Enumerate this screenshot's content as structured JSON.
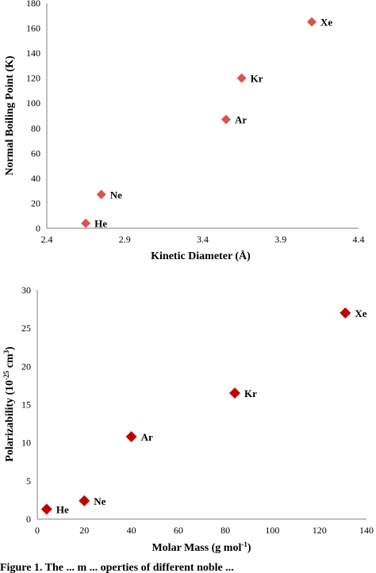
{
  "chart_data": [
    {
      "type": "scatter",
      "xlabel": "Kinetic Diameter (Å)",
      "ylabel": "Normal Boiling Point (K)",
      "xlim": [
        2.4,
        4.4
      ],
      "ylim": [
        0,
        180
      ],
      "xticks": [
        "2.4",
        "2.9",
        "3.4",
        "3.9",
        "4.4"
      ],
      "yticks": [
        "0",
        "20",
        "40",
        "60",
        "80",
        "100",
        "120",
        "140",
        "160",
        "180"
      ],
      "color": "#d9534f",
      "points": [
        {
          "label": "He",
          "x": 2.65,
          "y": 4
        },
        {
          "label": "Ne",
          "x": 2.75,
          "y": 27
        },
        {
          "label": "Ar",
          "x": 3.55,
          "y": 87
        },
        {
          "label": "Kr",
          "x": 3.65,
          "y": 120
        },
        {
          "label": "Xe",
          "x": 4.1,
          "y": 165
        }
      ]
    },
    {
      "type": "scatter",
      "xlabel": "Molar Mass (g mol-1)",
      "ylabel": "Polarizability (10-25 cm3)",
      "xlim": [
        0,
        140
      ],
      "ylim": [
        0,
        30
      ],
      "xticks": [
        "0",
        "20",
        "40",
        "60",
        "80",
        "100",
        "120",
        "140"
      ],
      "yticks": [
        "0",
        "5",
        "10",
        "15",
        "20",
        "25",
        "30"
      ],
      "color": "#c00000",
      "points": [
        {
          "label": "He",
          "x": 4,
          "y": 1.3
        },
        {
          "label": "Ne",
          "x": 20,
          "y": 2.4
        },
        {
          "label": "Ar",
          "x": 40,
          "y": 10.8
        },
        {
          "label": "Kr",
          "x": 84,
          "y": 16.5
        },
        {
          "label": "Xe",
          "x": 131,
          "y": 27
        }
      ]
    }
  ],
  "caption": "Figure 1. The  ...  m   ...  operties of different noble  ..."
}
